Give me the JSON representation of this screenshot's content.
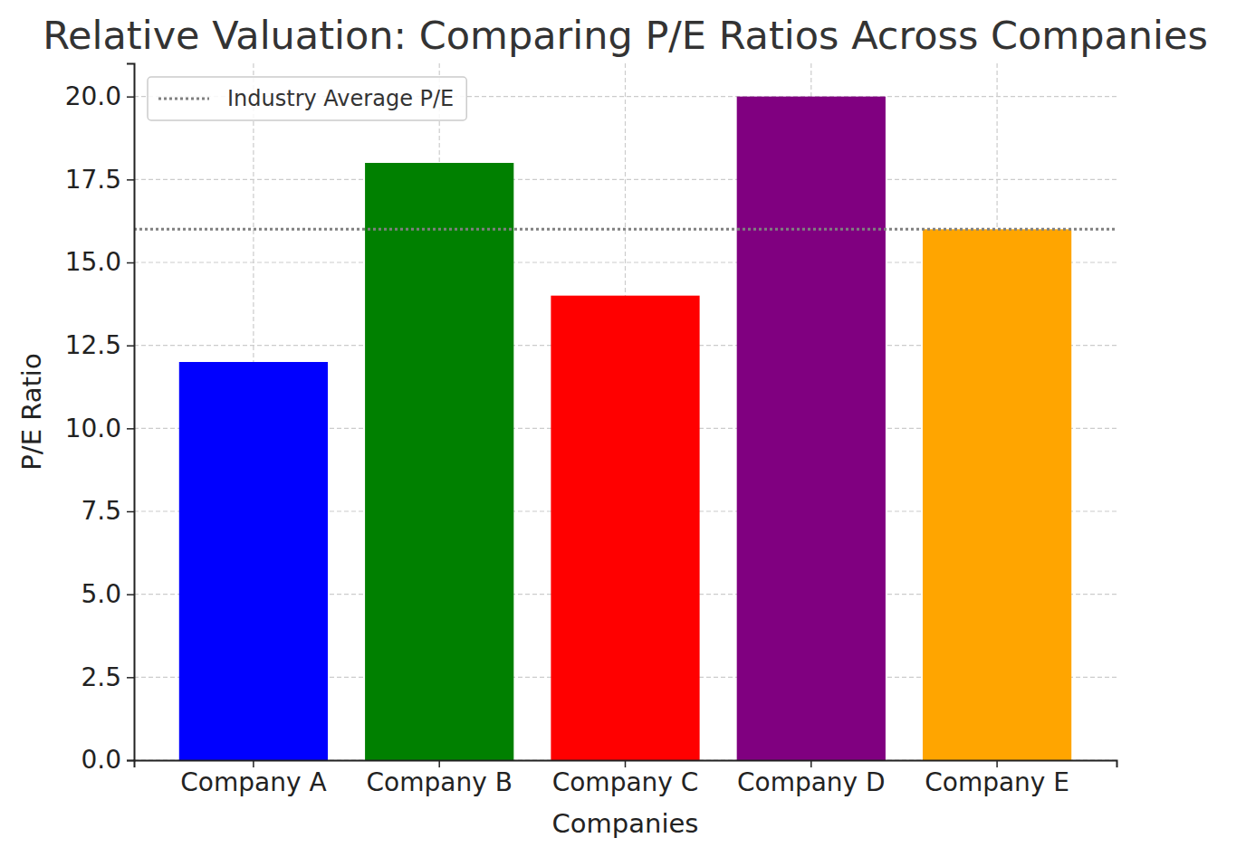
{
  "chart_data": {
    "type": "bar",
    "title": "Relative Valuation: Comparing P/E Ratios Across Companies",
    "x_label": "Companies",
    "y_label": "P/E Ratio",
    "categories": [
      "Company A",
      "Company B",
      "Company C",
      "Company D",
      "Company E"
    ],
    "values": [
      12,
      18,
      14,
      20,
      16
    ],
    "colors": [
      "#0000ff",
      "#008000",
      "#ff0000",
      "#800080",
      "#ffa500"
    ],
    "average_line": {
      "name": "Industry Average P/E",
      "value": 16,
      "color": "#808080",
      "line_style": "dotted"
    },
    "ylim": [
      0,
      21
    ],
    "yticks": [
      {
        "value": 0,
        "label": "0.0"
      },
      2.5,
      {
        "value": 5,
        "label": "5.0"
      },
      7.5,
      {
        "value": 10,
        "label": "10.0"
      },
      12.5,
      {
        "value": 15,
        "label": "15.0"
      },
      17.5,
      {
        "value": 20,
        "label": "20.0"
      }
    ],
    "grid": true,
    "legend": "upper left"
  }
}
